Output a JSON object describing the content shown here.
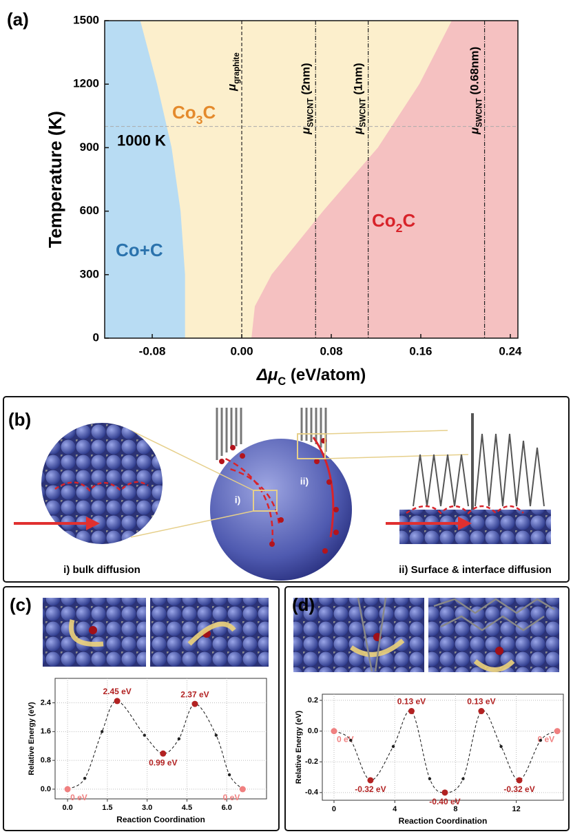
{
  "chart_data": [
    {
      "type": "phase",
      "panel": "(a)",
      "xlabel": [
        "Δμ",
        "C",
        " (eV/atom)"
      ],
      "ylabel": "Temperature (K)",
      "xlim": [
        -0.1225,
        0.2468
      ],
      "ylim": [
        0,
        1500
      ],
      "xticks": [
        {
          "value": -0.08,
          "label": "-0.08"
        },
        {
          "value": 0,
          "label": "0.00"
        },
        {
          "value": 0.08,
          "label": "0.08"
        },
        {
          "value": 0.16,
          "label": "0.16"
        },
        {
          "value": 0.24,
          "label": "0.24"
        }
      ],
      "yticks": [
        0,
        300,
        600,
        900,
        1200,
        1500
      ],
      "regions": [
        {
          "name": [
            "Co+C"
          ],
          "color": "#b8dcf3",
          "text_color": "#2b73ad"
        },
        {
          "name": [
            "Co",
            "3",
            "C"
          ],
          "color": "#fcefcc",
          "text_color": "#e48a2c"
        },
        {
          "name": [
            "Co",
            "2",
            "C"
          ],
          "color": "#f5c1c1",
          "text_color": "#d8232a"
        }
      ],
      "boundaries": [
        {
          "T": [
            0,
            300,
            600,
            900,
            1200,
            1500
          ],
          "mu": [
            -0.051,
            -0.051,
            -0.055,
            -0.063,
            -0.076,
            -0.091
          ]
        },
        {
          "T": [
            0,
            150,
            300,
            600,
            900,
            1200,
            1500
          ],
          "mu": [
            0.009,
            0.012,
            0.027,
            0.073,
            0.122,
            0.159,
            0.188
          ]
        }
      ],
      "chemical_potentials": [
        {
          "mu": 0,
          "label": [
            "μ",
            "graphite"
          ]
        },
        {
          "mu": 0.066,
          "label": [
            "μ",
            "SWCNT",
            " (2nm)"
          ]
        },
        {
          "mu": 0.113,
          "label": [
            "μ",
            "SWCNT",
            " (1nm)"
          ]
        },
        {
          "mu": 0.217,
          "label": [
            "μ",
            "SWCNT",
            " (0.68nm)"
          ]
        }
      ],
      "isotherm": {
        "T": 1000,
        "label": "1000 K"
      }
    },
    {
      "type": "line",
      "panel": "(c)",
      "xlabel": "Reaction Coordination",
      "ylabel": "Relative Energy (eV)",
      "xlim": [
        -0.47,
        7.5
      ],
      "ylim": [
        -0.27,
        3.08
      ],
      "xticks": [
        {
          "value": 0,
          "label": "0.0"
        },
        1.5,
        {
          "value": 3,
          "label": "3.0"
        },
        4.5,
        {
          "value": 6,
          "label": "6.0"
        }
      ],
      "yticks": [
        {
          "value": 0,
          "label": "0.0"
        },
        0.8,
        1.6,
        2.4
      ],
      "grid": true,
      "series": [
        {
          "color": "#b22222",
          "x": [
            0,
            1.87,
            3.6,
            4.8,
            6.6
          ],
          "values": [
            0,
            2.45,
            0.99,
            2.37,
            0
          ],
          "value_labels": [
            "0 eV",
            "2.45 eV",
            "0.99 eV",
            "2.37 eV",
            "0 eV"
          ],
          "point_colors": [
            "#f08080",
            "#b22222",
            "#b22222",
            "#b22222",
            "#f08080"
          ]
        },
        {
          "color": "#222222",
          "x": [
            0.65,
            1.3,
            2.9,
            4.2,
            5.6,
            6.1
          ],
          "values": [
            0.3,
            1.6,
            1.5,
            1.4,
            1.5,
            0.4
          ]
        }
      ]
    },
    {
      "type": "line",
      "panel": "(d)",
      "xlabel": "Reaction Coordination",
      "ylabel": "Relative Energy (eV)",
      "xlim": [
        -0.77,
        15.1
      ],
      "ylim": [
        -0.45,
        0.24
      ],
      "xticks": [
        0,
        4,
        8,
        12
      ],
      "yticks": [
        0.2,
        {
          "value": 0,
          "label": "0.0"
        },
        -0.2,
        -0.4
      ],
      "grid": true,
      "series": [
        {
          "color": "#b22222",
          "x": [
            0,
            2.4,
            5.1,
            7.3,
            9.7,
            12.2,
            14.7
          ],
          "values": [
            0,
            -0.32,
            0.13,
            -0.4,
            0.13,
            -0.32,
            0
          ],
          "value_labels": [
            "0 eV",
            "-0.32 eV",
            "0.13 eV",
            "-0.40 eV",
            "0.13 eV",
            "-0.32 eV",
            "0 eV"
          ],
          "point_colors": [
            "#f08080",
            "#b22222",
            "#b22222",
            "#b22222",
            "#b22222",
            "#b22222",
            "#f08080"
          ]
        },
        {
          "color": "#222222",
          "x": [
            1.1,
            3.9,
            6.3,
            8.5,
            11.0,
            13.6
          ],
          "values": [
            -0.06,
            -0.1,
            -0.31,
            -0.31,
            -0.1,
            -0.06
          ]
        }
      ]
    }
  ],
  "panel_b": {
    "label": "(b)",
    "regions": [
      "i)",
      "ii)"
    ],
    "captions": [
      "i) bulk diffusion",
      "ii) Surface & interface diffusion"
    ]
  }
}
